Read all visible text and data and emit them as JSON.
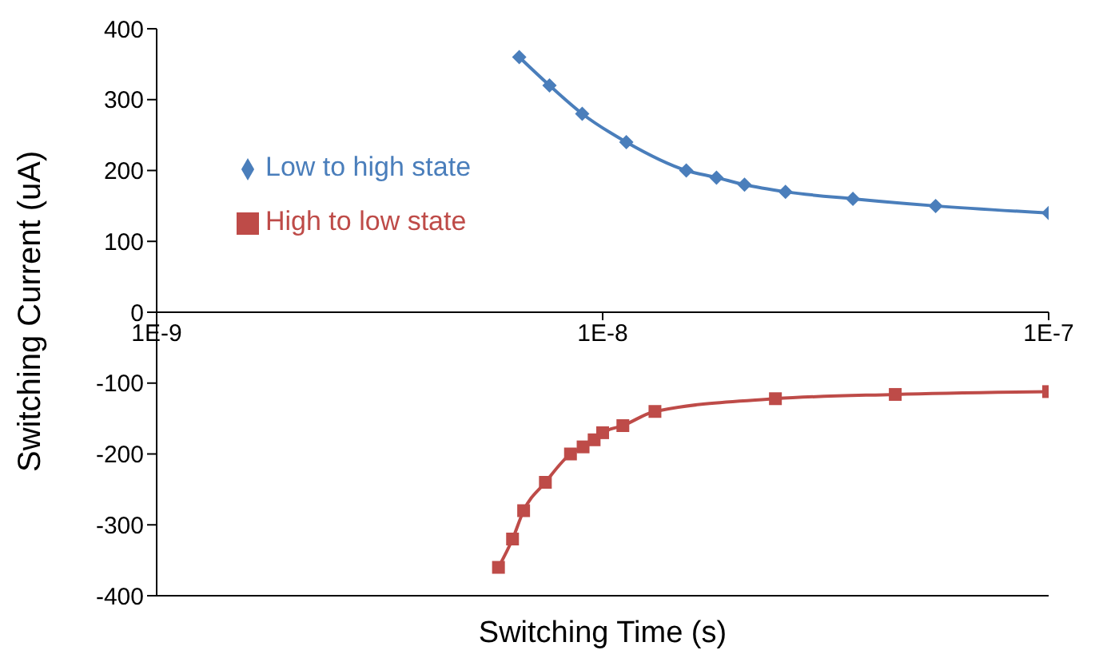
{
  "chart_data": {
    "type": "line",
    "xlabel": "Switching Time (s)",
    "ylabel": "Switching Current (uA)",
    "log": "x",
    "xlim": [
      1e-09,
      1e-07
    ],
    "xticks": [
      {
        "value": 1e-09,
        "label": "1E-9"
      },
      {
        "value": 1e-08,
        "label": "1E-8"
      },
      {
        "value": 1e-07,
        "label": "1E-7"
      }
    ],
    "ylim": [
      -400,
      400
    ],
    "yticks": [
      -400,
      -300,
      -200,
      -100,
      0,
      100,
      200,
      300,
      400
    ],
    "grid": false,
    "legend": "top left",
    "series": [
      {
        "name": "Low to high state",
        "color": "#4a7ebb",
        "marker": "diamond",
        "x": [
          6.5e-09,
          7.6e-09,
          9e-09,
          1.13e-08,
          1.54e-08,
          1.8e-08,
          2.08e-08,
          2.57e-08,
          3.64e-08,
          5.58e-08,
          1e-07
        ],
        "values": [
          360,
          320,
          280,
          240,
          200,
          190,
          180,
          170,
          160,
          150,
          140
        ]
      },
      {
        "name": "High to low state",
        "color": "#be4b48",
        "marker": "square",
        "x": [
          5.84e-09,
          6.28e-09,
          6.65e-09,
          7.44e-09,
          8.47e-09,
          9.04e-09,
          9.57e-09,
          1e-08,
          1.11e-08,
          1.31e-08,
          2.44e-08,
          4.53e-08,
          1e-07
        ],
        "values": [
          -360,
          -320,
          -280,
          -240,
          -200,
          -190,
          -180,
          -170,
          -160,
          -140,
          -122,
          -116,
          -112
        ]
      }
    ]
  }
}
